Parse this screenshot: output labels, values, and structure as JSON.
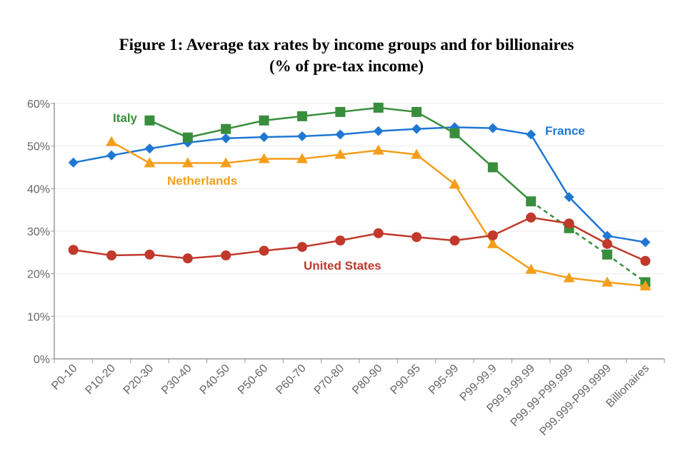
{
  "chart_data": {
    "type": "line",
    "title": "Figure 1: Average tax rates by income groups and for billionaires",
    "subtitle": "(% of pre-tax income)",
    "xlabel": "",
    "ylabel": "",
    "ylim": [
      0,
      60
    ],
    "yticks": [
      0,
      10,
      20,
      30,
      40,
      50,
      60
    ],
    "ytick_labels": [
      "0%",
      "10%",
      "20%",
      "30%",
      "40%",
      "50%",
      "60%"
    ],
    "grid": true,
    "legend": "inline labels",
    "categories": [
      "P0-10",
      "P10-20",
      "P20-30",
      "P30-40",
      "P40-50",
      "P50-60",
      "P60-70",
      "P70-80",
      "P80-90",
      "P90-95",
      "P95-99",
      "P99-99.9",
      "P99.9-99.99",
      "P99.99-P99.999",
      "P99.999-P99.9999",
      "Billionaires"
    ],
    "series": [
      {
        "name": "France",
        "color": "#1f77d4",
        "marker": "diamond",
        "values": [
          46.1,
          47.8,
          49.4,
          50.8,
          51.8,
          52.1,
          52.3,
          52.7,
          53.5,
          54.0,
          54.4,
          54.2,
          52.7,
          38.0,
          28.9,
          27.4
        ]
      },
      {
        "name": "Italy",
        "color": "#388e3c",
        "marker": "square",
        "dashed_from_index": 12,
        "values": [
          null,
          null,
          56,
          52,
          54,
          56,
          57,
          58,
          59,
          58,
          53,
          45,
          37,
          30.7,
          24.5,
          18
        ]
      },
      {
        "name": "Netherlands",
        "color": "#f59e1b",
        "marker": "triangle",
        "values": [
          null,
          51,
          46,
          46,
          46,
          47,
          47,
          48,
          49,
          48,
          41,
          27,
          21,
          19,
          18,
          17.1
        ]
      },
      {
        "name": "United States",
        "color": "#c0392b",
        "marker": "circle",
        "values": [
          25.6,
          24.3,
          24.5,
          23.6,
          24.3,
          25.4,
          26.3,
          27.8,
          29.5,
          28.6,
          27.8,
          29.0,
          33.2,
          31.8,
          27.0,
          23.0
        ]
      }
    ]
  }
}
